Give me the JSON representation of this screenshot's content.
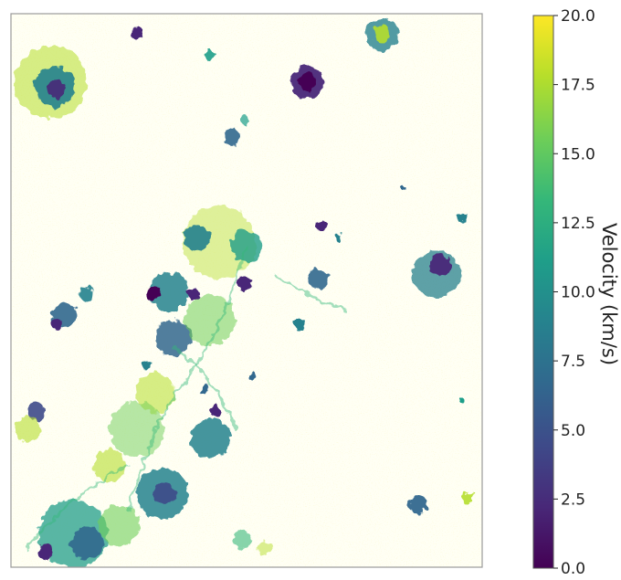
{
  "chart_data": {
    "type": "heatmap",
    "title": "",
    "xlabel": "",
    "ylabel": "",
    "colorbar": {
      "label": "Velocity (km/s)",
      "vmin": 0.0,
      "vmax": 20.0,
      "colormap": "viridis",
      "ticks": [
        0.0,
        2.5,
        5.0,
        7.5,
        10.0,
        12.5,
        15.0,
        17.5,
        20.0
      ],
      "tick_labels": [
        "0.0",
        "2.5",
        "5.0",
        "7.5",
        "10.0",
        "12.5",
        "15.0",
        "17.5",
        "20.0"
      ]
    },
    "background_value": 20.0,
    "x_ticks": "none",
    "y_ticks": "none",
    "grid": false
  },
  "colors": {
    "viridis_stops": [
      "#440154",
      "#482878",
      "#3e4a89",
      "#31688e",
      "#26828e",
      "#1f9e89",
      "#35b779",
      "#6ece58",
      "#b5de2b",
      "#fde725"
    ],
    "frame": "#9a9a9a"
  }
}
